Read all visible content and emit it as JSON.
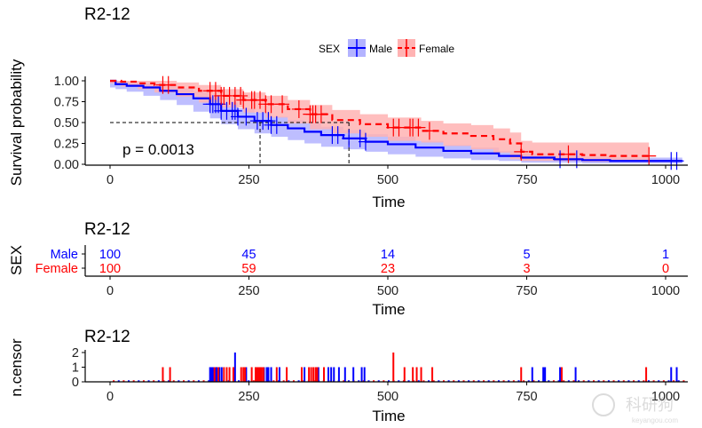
{
  "chart_data": [
    {
      "type": "line",
      "subtype": "kaplan-meier",
      "title": "R2-12",
      "xlabel": "Time",
      "ylabel": "Survival probability",
      "xlim": [
        -40,
        1040
      ],
      "ylim": [
        0,
        1
      ],
      "xticks": [
        0,
        250,
        500,
        750,
        1000
      ],
      "yticks": [
        "0.00",
        "0.25",
        "0.50",
        "0.75",
        "1.00"
      ],
      "legend": {
        "title": "SEX",
        "position": "top-center",
        "entries": [
          "Male",
          "Female"
        ]
      },
      "annotation": "p = 0.0013",
      "median_lines": {
        "y": 0.5,
        "x": [
          270,
          430
        ]
      },
      "series": [
        {
          "name": "Male",
          "color": "#0000ff",
          "fill": "#b3b3ff",
          "linestyle": "solid",
          "x": [
            0,
            10,
            30,
            60,
            90,
            120,
            150,
            180,
            200,
            230,
            260,
            290,
            320,
            350,
            380,
            420,
            460,
            500,
            550,
            600,
            650,
            700,
            740,
            800,
            850,
            900,
            1000,
            1030
          ],
          "y": [
            1.0,
            0.96,
            0.94,
            0.92,
            0.88,
            0.84,
            0.79,
            0.72,
            0.64,
            0.57,
            0.52,
            0.47,
            0.43,
            0.39,
            0.35,
            0.31,
            0.27,
            0.24,
            0.2,
            0.16,
            0.13,
            0.1,
            0.08,
            0.06,
            0.05,
            0.04,
            0.04,
            0.04
          ],
          "lower": [
            1.0,
            0.92,
            0.9,
            0.87,
            0.82,
            0.77,
            0.71,
            0.63,
            0.55,
            0.48,
            0.42,
            0.37,
            0.33,
            0.29,
            0.25,
            0.21,
            0.18,
            0.15,
            0.12,
            0.09,
            0.07,
            0.05,
            0.04,
            0.02,
            0.02,
            0.01,
            0.01,
            0.01
          ],
          "upper": [
            1.0,
            1.0,
            0.98,
            0.97,
            0.94,
            0.91,
            0.87,
            0.81,
            0.74,
            0.67,
            0.62,
            0.57,
            0.53,
            0.49,
            0.45,
            0.41,
            0.36,
            0.33,
            0.28,
            0.23,
            0.2,
            0.16,
            0.13,
            0.1,
            0.09,
            0.08,
            0.08,
            0.08
          ],
          "censor_x": [
            180,
            185,
            190,
            195,
            200,
            210,
            220,
            225,
            230,
            245,
            265,
            275,
            285,
            290,
            300,
            400,
            410,
            430,
            450,
            460,
            810,
            840,
            1010,
            1020
          ]
        },
        {
          "name": "Female",
          "color": "#ff0000",
          "fill": "#ffb3b3",
          "linestyle": "dashed",
          "x": [
            0,
            20,
            50,
            80,
            120,
            160,
            200,
            240,
            280,
            320,
            360,
            400,
            450,
            500,
            560,
            600,
            650,
            690,
            720,
            740,
            760,
            800,
            850,
            900,
            970
          ],
          "y": [
            1.0,
            0.99,
            0.97,
            0.95,
            0.92,
            0.88,
            0.82,
            0.77,
            0.72,
            0.66,
            0.6,
            0.53,
            0.48,
            0.44,
            0.4,
            0.37,
            0.34,
            0.3,
            0.25,
            0.15,
            0.12,
            0.12,
            0.11,
            0.1,
            0.1
          ],
          "lower": [
            1.0,
            0.97,
            0.93,
            0.9,
            0.86,
            0.81,
            0.74,
            0.68,
            0.62,
            0.56,
            0.49,
            0.42,
            0.37,
            0.33,
            0.28,
            0.26,
            0.22,
            0.18,
            0.14,
            0.06,
            0.04,
            0.04,
            0.04,
            0.03,
            0.03
          ],
          "upper": [
            1.0,
            1.0,
            1.0,
            1.0,
            0.98,
            0.95,
            0.9,
            0.86,
            0.82,
            0.77,
            0.71,
            0.65,
            0.6,
            0.56,
            0.52,
            0.49,
            0.47,
            0.43,
            0.38,
            0.28,
            0.26,
            0.26,
            0.26,
            0.26,
            0.26
          ],
          "censor_x": [
            95,
            105,
            180,
            190,
            200,
            205,
            215,
            225,
            235,
            240,
            255,
            260,
            270,
            280,
            290,
            310,
            340,
            360,
            365,
            370,
            380,
            510,
            520,
            540,
            545,
            555,
            575,
            740,
            825,
            970
          ]
        }
      ]
    },
    {
      "type": "table",
      "title": "R2-12",
      "ylabel": "SEX",
      "xlabel": "Time",
      "xticks": [
        0,
        250,
        500,
        750,
        1000
      ],
      "rows": [
        {
          "name": "Male",
          "color": "#0000ff",
          "values": [
            100,
            45,
            14,
            5,
            1
          ]
        },
        {
          "name": "Female",
          "color": "#ff0000",
          "values": [
            100,
            59,
            23,
            3,
            0
          ]
        }
      ]
    },
    {
      "type": "bar",
      "title": "R2-12",
      "ylabel": "n.censor",
      "xlabel": "Time",
      "xticks": [
        0,
        250,
        500,
        750,
        1000
      ],
      "yticks": [
        0,
        1,
        2
      ],
      "ylim": [
        0,
        2
      ],
      "series": [
        {
          "name": "Male",
          "color": "#0000ff",
          "x": [
            180,
            183,
            186,
            190,
            192,
            197,
            201,
            225,
            245,
            265,
            272,
            277,
            282,
            285,
            290,
            305,
            350,
            375,
            393,
            398,
            403,
            412,
            423,
            438,
            453,
            458,
            760,
            780,
            783,
            780,
            810,
            838,
            1010,
            1020
          ],
          "values": [
            1,
            1,
            1,
            1,
            1,
            1,
            1,
            2,
            1,
            1,
            1,
            1,
            1,
            1,
            1,
            1,
            1,
            1,
            1,
            1,
            1,
            1,
            1,
            1,
            1,
            1,
            1,
            1,
            1,
            1,
            1,
            1,
            1,
            1
          ]
        },
        {
          "name": "Female",
          "color": "#ff0000",
          "x": [
            95,
            108,
            188,
            195,
            205,
            210,
            215,
            222,
            236,
            240,
            243,
            255,
            262,
            265,
            268,
            270,
            273,
            276,
            300,
            318,
            345,
            358,
            362,
            366,
            370,
            373,
            385,
            510,
            530,
            545,
            552,
            560,
            580,
            740,
            813,
            965
          ],
          "values": [
            1,
            1,
            1,
            1,
            1,
            1,
            1,
            1,
            1,
            1,
            1,
            1,
            1,
            1,
            1,
            1,
            1,
            1,
            1,
            1,
            1,
            1,
            1,
            1,
            1,
            1,
            1,
            2,
            1,
            1,
            1,
            1,
            1,
            1,
            1,
            1
          ]
        }
      ]
    }
  ],
  "watermark": {
    "text": "科研狗",
    "subtext": "keyangou.com"
  }
}
